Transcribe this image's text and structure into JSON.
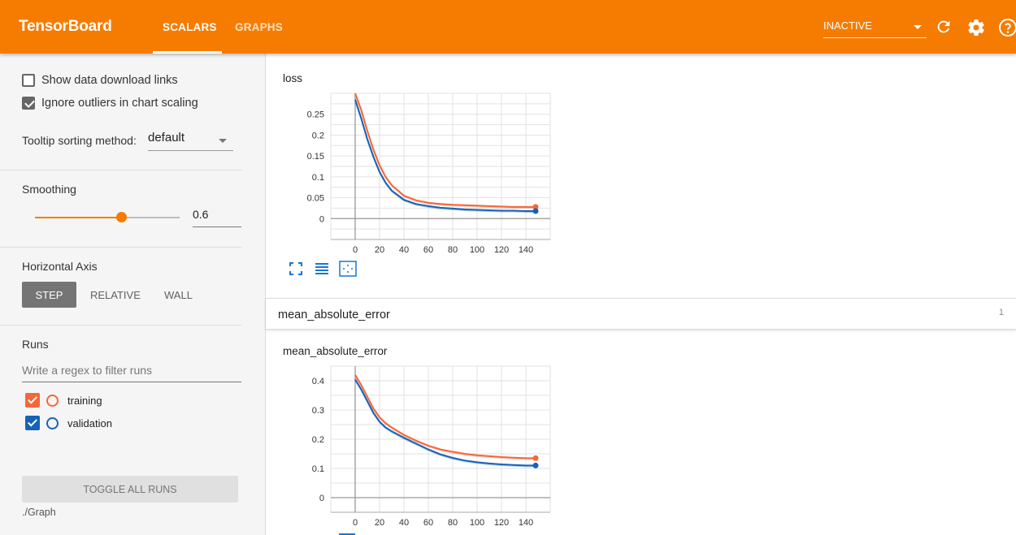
{
  "header": {
    "brand": "TensorBoard",
    "tabs": [
      {
        "label": "SCALARS"
      },
      {
        "label": "GRAPHS"
      }
    ],
    "run_status": "INACTIVE",
    "colors": {
      "accent": "#f57c00"
    }
  },
  "sidebar": {
    "show_download_links": {
      "label": "Show data download links",
      "checked": false
    },
    "ignore_outliers": {
      "label": "Ignore outliers in chart scaling",
      "checked": true
    },
    "tooltip_sort": {
      "label": "Tooltip sorting method:",
      "value": "default"
    },
    "smoothing": {
      "label": "Smoothing",
      "value": "0.6",
      "level": 0.6
    },
    "horizontal_axis": {
      "label": "Horizontal Axis",
      "options": [
        "STEP",
        "RELATIVE",
        "WALL"
      ],
      "selected": "STEP"
    },
    "runs": {
      "label": "Runs",
      "filter_placeholder": "Write a regex to filter runs",
      "items": [
        {
          "name": "training",
          "color": "#f4673a",
          "checked": true
        },
        {
          "name": "validation",
          "color": "#1563b8",
          "checked": true
        }
      ]
    },
    "toggle_label": "TOGGLE ALL RUNS",
    "logdir": "./Graph"
  },
  "main": {
    "card_header": {
      "title": "mean_absolute_error",
      "count": "1"
    }
  },
  "chart_data": [
    {
      "type": "line",
      "title": "loss",
      "xlabel": "",
      "ylabel": "",
      "xlim": [
        -20,
        160
      ],
      "ylim": [
        -0.05,
        0.3
      ],
      "xticks": [
        "0",
        "20",
        "40",
        "60",
        "80",
        "100",
        "120",
        "140"
      ],
      "yticks": [
        "0",
        "0.05",
        "0.1",
        "0.15",
        "0.2",
        "0.25"
      ],
      "grid": true,
      "series": [
        {
          "name": "training",
          "color": "#f4673a",
          "x": [
            0,
            5,
            10,
            15,
            20,
            25,
            30,
            40,
            50,
            60,
            70,
            80,
            90,
            100,
            110,
            120,
            130,
            140,
            148
          ],
          "y": [
            0.3,
            0.26,
            0.21,
            0.165,
            0.128,
            0.1,
            0.08,
            0.055,
            0.044,
            0.038,
            0.035,
            0.033,
            0.032,
            0.031,
            0.03,
            0.029,
            0.028,
            0.028,
            0.028
          ]
        },
        {
          "name": "validation",
          "color": "#1563b8",
          "x": [
            0,
            5,
            10,
            15,
            20,
            25,
            30,
            40,
            50,
            60,
            70,
            80,
            90,
            100,
            110,
            120,
            130,
            140,
            148
          ],
          "y": [
            0.285,
            0.24,
            0.19,
            0.148,
            0.112,
            0.086,
            0.067,
            0.045,
            0.035,
            0.03,
            0.026,
            0.024,
            0.022,
            0.021,
            0.02,
            0.019,
            0.019,
            0.018,
            0.018
          ]
        }
      ]
    },
    {
      "type": "line",
      "title": "mean_absolute_error",
      "xlabel": "",
      "ylabel": "",
      "xlim": [
        -20,
        160
      ],
      "ylim": [
        -0.05,
        0.45
      ],
      "xticks": [
        "0",
        "20",
        "40",
        "60",
        "80",
        "100",
        "120",
        "140"
      ],
      "yticks": [
        "0",
        "0.1",
        "0.2",
        "0.3",
        "0.4"
      ],
      "grid": true,
      "series": [
        {
          "name": "training",
          "color": "#f4673a",
          "x": [
            0,
            5,
            10,
            15,
            20,
            25,
            30,
            40,
            50,
            60,
            70,
            80,
            90,
            100,
            110,
            120,
            130,
            140,
            148
          ],
          "y": [
            0.42,
            0.385,
            0.345,
            0.305,
            0.275,
            0.255,
            0.24,
            0.215,
            0.195,
            0.178,
            0.165,
            0.157,
            0.15,
            0.145,
            0.142,
            0.139,
            0.137,
            0.135,
            0.135
          ]
        },
        {
          "name": "validation",
          "color": "#1563b8",
          "x": [
            0,
            5,
            10,
            15,
            20,
            25,
            30,
            40,
            50,
            60,
            70,
            80,
            90,
            100,
            110,
            120,
            130,
            140,
            148
          ],
          "y": [
            0.405,
            0.37,
            0.33,
            0.29,
            0.26,
            0.24,
            0.227,
            0.205,
            0.185,
            0.165,
            0.148,
            0.136,
            0.127,
            0.121,
            0.117,
            0.114,
            0.112,
            0.11,
            0.11
          ]
        }
      ]
    }
  ]
}
